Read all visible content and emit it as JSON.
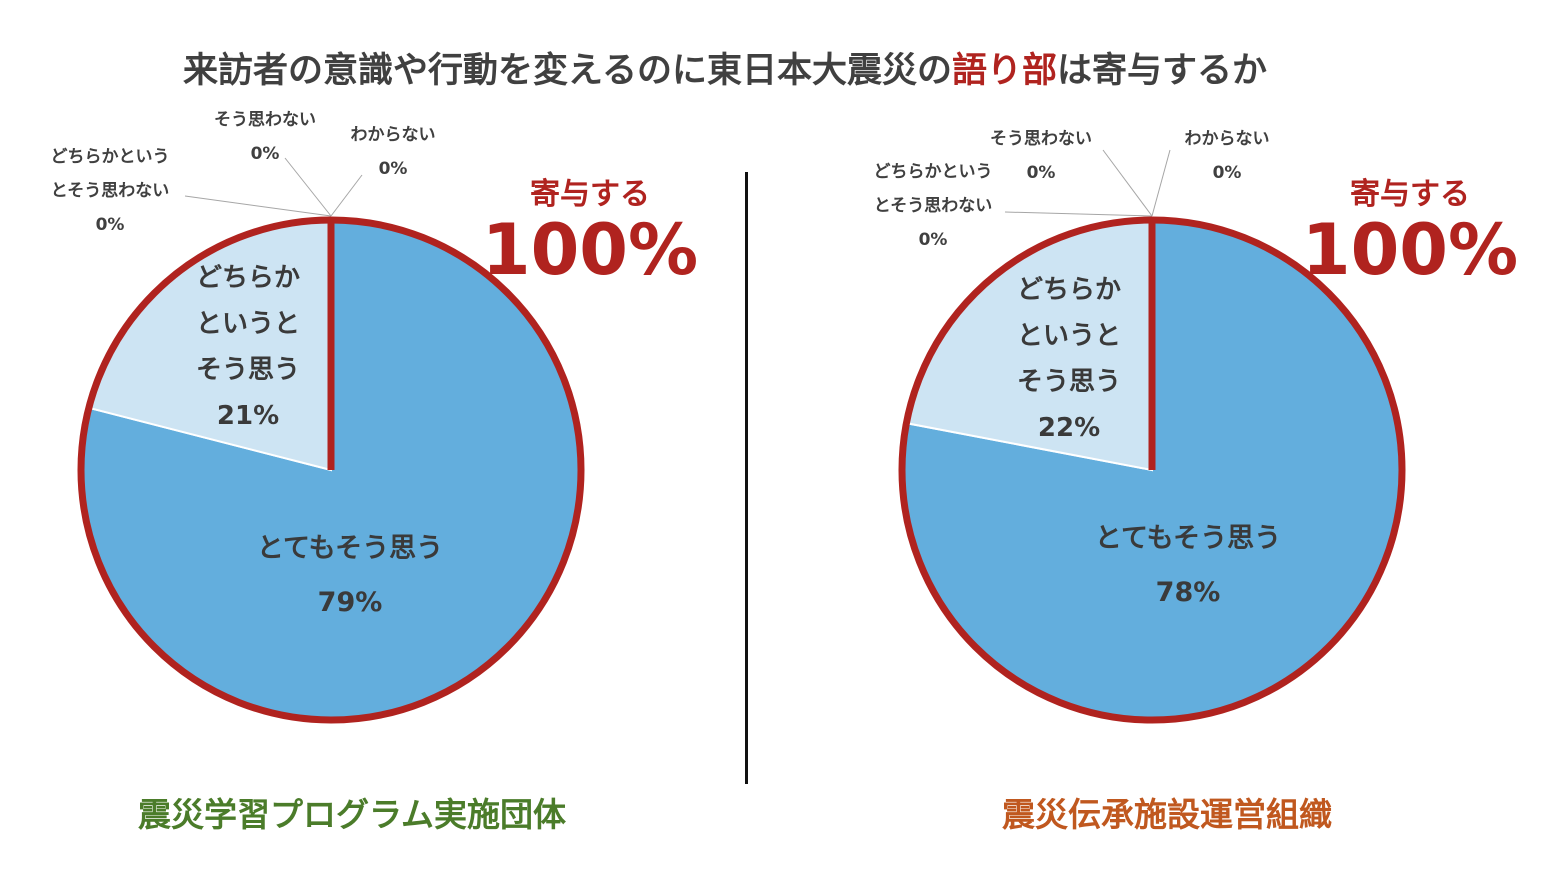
{
  "title": {
    "before": "来訪者の意識や行動を変えるのに東日本大震災の",
    "highlight": "語り部",
    "after": "は寄与するか"
  },
  "colors": {
    "very": "#63aedd",
    "somewhat": "#cde4f3",
    "outline": "#b0231f",
    "highlight": "#b0231f",
    "caption_left": "#4b7c2a",
    "caption_right": "#c0581f"
  },
  "chart_data": [
    {
      "type": "pie",
      "caption": "震災学習プログラム実施団体",
      "contribution": {
        "label": "寄与する",
        "value": "100%"
      },
      "slices": [
        {
          "label": "とてもそう思う",
          "value": 79,
          "display": "79%"
        },
        {
          "label": "どちらかというとそう思う",
          "lines": [
            "どちらか",
            "というと",
            "そう思う"
          ],
          "value": 21,
          "display": "21%"
        },
        {
          "label": "どちらかというとそう思わない",
          "lines": [
            "どちらかという",
            "とそう思わない"
          ],
          "value": 0,
          "display": "0%"
        },
        {
          "label": "そう思わない",
          "value": 0,
          "display": "0%"
        },
        {
          "label": "わからない",
          "value": 0,
          "display": "0%"
        }
      ]
    },
    {
      "type": "pie",
      "caption": "震災伝承施設運営組織",
      "contribution": {
        "label": "寄与する",
        "value": "100%"
      },
      "slices": [
        {
          "label": "とてもそう思う",
          "value": 78,
          "display": "78%"
        },
        {
          "label": "どちらかというとそう思う",
          "lines": [
            "どちらか",
            "というと",
            "そう思う"
          ],
          "value": 22,
          "display": "22%"
        },
        {
          "label": "どちらかというとそう思わない",
          "lines": [
            "どちらかという",
            "とそう思わない"
          ],
          "value": 0,
          "display": "0%"
        },
        {
          "label": "そう思わない",
          "value": 0,
          "display": "0%"
        },
        {
          "label": "わからない",
          "value": 0,
          "display": "0%"
        }
      ]
    }
  ]
}
